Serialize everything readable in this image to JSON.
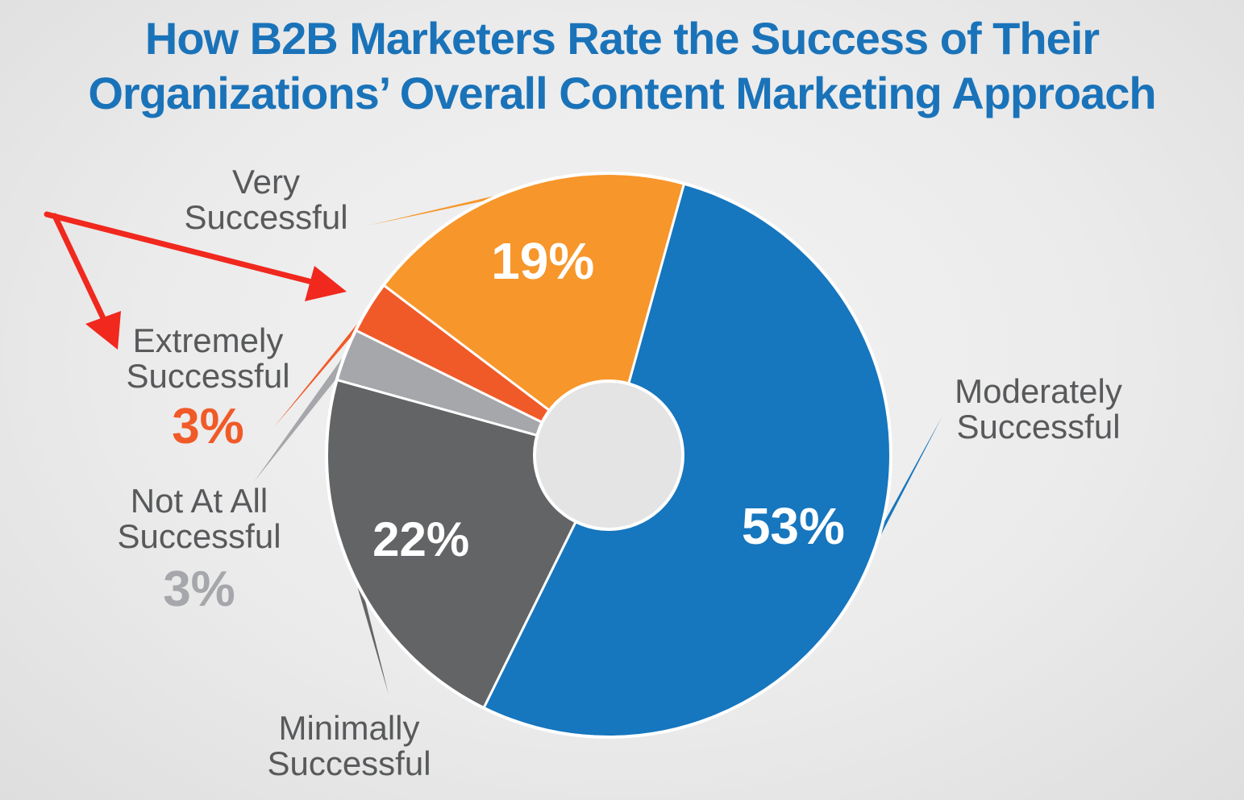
{
  "chart_data": {
    "type": "pie",
    "title": "How B2B Marketers Rate the Success of Their Organizations’ Overall Content Marketing Approach",
    "title_lines": [
      "How B2B Marketers Rate the Success of Their",
      "Organizations’ Overall Content Marketing Approach"
    ],
    "donut": true,
    "slices": [
      {
        "key": "moderately",
        "label_lines": [
          "Moderately",
          "Successful"
        ],
        "value": 53,
        "value_label": "53%",
        "color": "#1676be"
      },
      {
        "key": "minimally",
        "label_lines": [
          "Minimally",
          "Successful"
        ],
        "value": 22,
        "value_label": "22%",
        "color": "#636466"
      },
      {
        "key": "not_at_all",
        "label_lines": [
          "Not At All",
          "Successful"
        ],
        "value": 3,
        "value_label": "3%",
        "color": "#a5a7aa"
      },
      {
        "key": "extremely",
        "label_lines": [
          "Extremely",
          "Successful"
        ],
        "value": 3,
        "value_label": "3%",
        "color": "#f05a28"
      },
      {
        "key": "very",
        "label_lines": [
          "Very",
          "Successful"
        ],
        "value": 19,
        "value_label": "19%",
        "color": "#f7962a"
      }
    ],
    "annotation_arrow_color": "#f0281e",
    "label_text_color": "#58595b"
  }
}
